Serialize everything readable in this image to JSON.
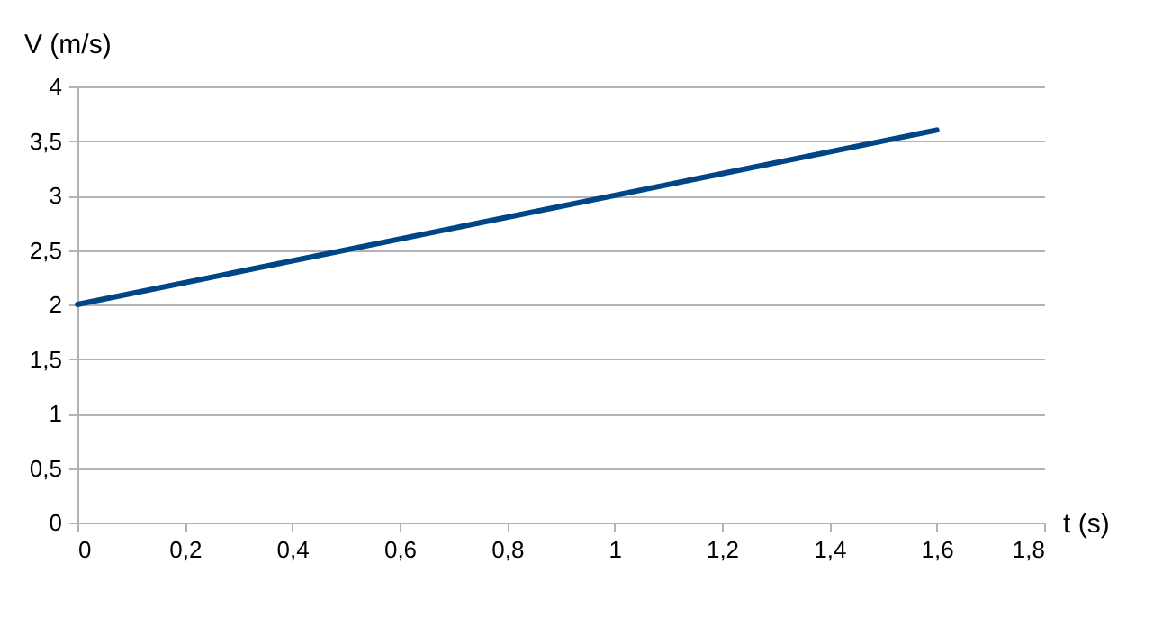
{
  "chart_data": {
    "type": "line",
    "xlabel": "t (s)",
    "ylabel": "V  (m/s)",
    "x": [
      0,
      1.6
    ],
    "series": [
      {
        "color": "#004586",
        "values": [
          2,
          3.6
        ]
      }
    ],
    "xlim": [
      0,
      1.8
    ],
    "xticks": [
      0,
      {
        "value": 0.2,
        "label": "0,2"
      },
      {
        "value": 0.4,
        "label": "0,4"
      },
      {
        "value": 0.6,
        "label": "0,6"
      },
      {
        "value": 0.8,
        "label": "0,8"
      },
      1,
      {
        "value": 1.2,
        "label": "1,2"
      },
      {
        "value": 1.4,
        "label": "1,4"
      },
      {
        "value": 1.6,
        "label": "1,6"
      },
      {
        "value": 1.8,
        "label": "1,8"
      }
    ],
    "ylim": [
      0,
      4
    ],
    "yticks": [
      0,
      {
        "value": 0.5,
        "label": "0,5"
      },
      1,
      {
        "value": 1.5,
        "label": "1,5"
      },
      2,
      {
        "value": 2.5,
        "label": "2,5"
      },
      3,
      {
        "value": 3.5,
        "label": "3,5"
      },
      4
    ],
    "grid": "y",
    "marker": "none",
    "line_style": "solid"
  }
}
